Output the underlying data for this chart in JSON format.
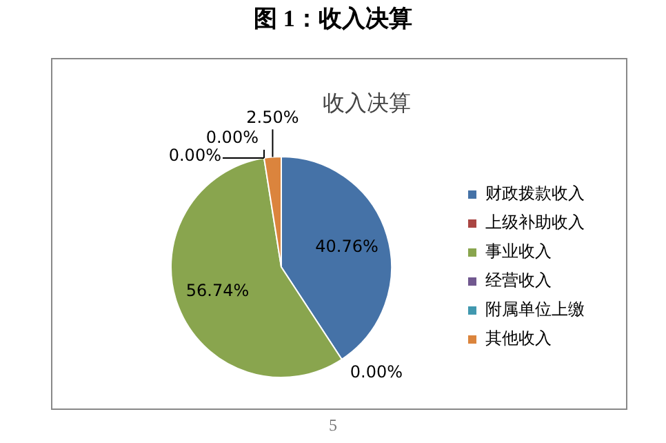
{
  "chart_data": {
    "type": "pie",
    "title": "图 1：收入决算",
    "subtitle": "收入决算",
    "categories": [
      "财政拨款收入",
      "上级补助收入",
      "事业收入",
      "经营收入",
      "附属单位上缴",
      "其他收入"
    ],
    "values": [
      40.76,
      0,
      56.74,
      0,
      0,
      2.5
    ],
    "value_labels": [
      "40.76%",
      "0.00%",
      "56.74%",
      "0.00%",
      "0.00%",
      "2.50%"
    ],
    "colors": [
      "#4572a7",
      "#aa4643",
      "#89a54e",
      "#71588f",
      "#4198af",
      "#db843d"
    ],
    "legend": "right",
    "annotations": [
      "5"
    ]
  }
}
